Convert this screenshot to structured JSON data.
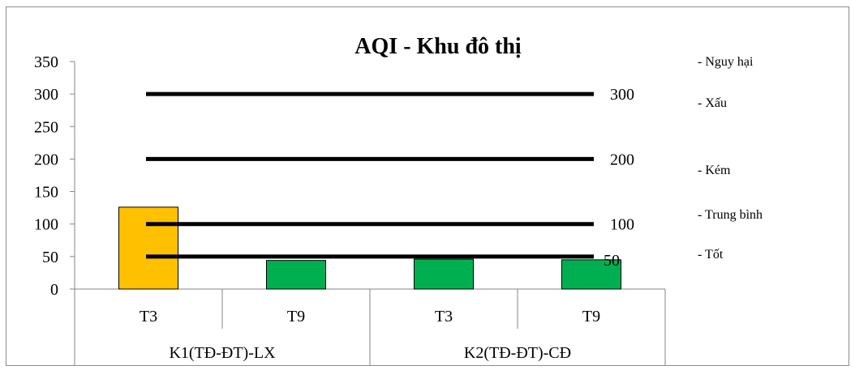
{
  "chart_data": {
    "type": "bar",
    "title": "AQI - Khu đô thị",
    "xlabel": "",
    "ylabel": "",
    "ylim": [
      0,
      350
    ],
    "y_ticks": [
      "0",
      "50",
      "100",
      "150",
      "200",
      "250",
      "300",
      "350"
    ],
    "y_tick_values": [
      0,
      50,
      100,
      150,
      200,
      250,
      300,
      350
    ],
    "categories": [
      "T3",
      "T9",
      "T3",
      "T9"
    ],
    "groups": [
      {
        "label": "K1(TĐ-ĐT)-LX",
        "categories": [
          "T3",
          "T9"
        ]
      },
      {
        "label": "K2(TĐ-ĐT)-CĐ",
        "categories": [
          "T3",
          "T9"
        ]
      }
    ],
    "values": [
      126,
      44,
      46,
      45
    ],
    "bar_colors": [
      "#FFC000",
      "#00B050",
      "#00B050",
      "#00B050"
    ],
    "reference_lines": [
      {
        "value": 300,
        "label": "300"
      },
      {
        "value": 200,
        "label": "200"
      },
      {
        "value": 100,
        "label": "100"
      },
      {
        "value": 50,
        "label": "50"
      }
    ],
    "category_legend": [
      "- Nguy hại",
      "- Xấu",
      "- Kém",
      "- Trung bình",
      "- Tốt"
    ],
    "grid": false,
    "legend_position": "right"
  }
}
